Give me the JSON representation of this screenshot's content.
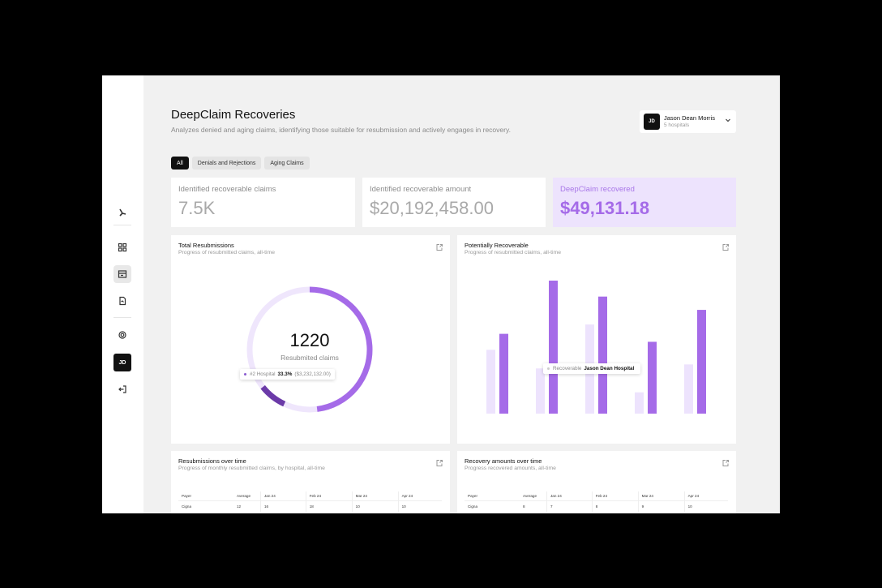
{
  "sidebar": {
    "items": [
      {
        "name": "logo"
      },
      {
        "name": "dashboard-icon"
      },
      {
        "name": "claims-icon"
      },
      {
        "name": "documents-icon"
      },
      {
        "name": "settings-icon"
      }
    ],
    "avatar_initials": "JD",
    "logout_icon": "logout-icon"
  },
  "header": {
    "title": "DeepClaim Recoveries",
    "subtitle": "Analyzes denied and aging claims, identifying those suitable for resubmission and actively engages in recovery."
  },
  "user": {
    "initials": "JD",
    "name": "Jason Dean Morris",
    "subtitle": "5 hospitals"
  },
  "filters": [
    "All",
    "Denials and Rejections",
    "Aging Claims"
  ],
  "stats": [
    {
      "label": "Identified recoverable claims",
      "value": "7.5K"
    },
    {
      "label": "Identified recoverable amount",
      "value": "$20,192,458.00"
    },
    {
      "label": "DeepClaim recovered",
      "value": "$49,131.18"
    }
  ],
  "cards": {
    "total_resubmissions": {
      "title": "Total Resubmissions",
      "subtitle": "Progress of resubmitted claims, all-time",
      "center_value": "1220",
      "center_label": "Resubmited claims",
      "tooltip": {
        "label": "#2 Hospital",
        "pct": "33.3%",
        "amount": "($3,232,132.00)"
      }
    },
    "potentially_recoverable": {
      "title": "Potentially Recoverable",
      "subtitle": "Progress of resubmitted claims, all-time",
      "tooltip": {
        "label": "Recoverable",
        "value": "Jason Dean Hospital"
      }
    },
    "resubmissions_over_time": {
      "title": "Resubmissions over time",
      "subtitle": "Progress of monthly resubmitted claims, by hospital, all-time",
      "headers": [
        "Payer",
        "Average",
        "Jan 24",
        "Feb 24",
        "Mar 24",
        "Apr 24"
      ],
      "rows": [
        [
          "Cigna",
          "12",
          "16",
          "18",
          "10",
          "10"
        ]
      ]
    },
    "recovery_amounts_over_time": {
      "title": "Recovery amounts over time",
      "subtitle": "Progress recovered amounts, all-time",
      "headers": [
        "Payer",
        "Average",
        "Jan 24",
        "Feb 24",
        "Mar 24",
        "Apr 24"
      ],
      "rows": [
        [
          "Cigna",
          "8",
          "7",
          "8",
          "9",
          "10"
        ]
      ]
    }
  },
  "chart_data": [
    {
      "type": "pie",
      "title": "Total Resubmissions",
      "segments": [
        {
          "name": "#2 Hospital",
          "value": 33.3
        },
        {
          "name": "other",
          "value": 66.7
        }
      ]
    },
    {
      "type": "bar",
      "title": "Potentially Recoverable",
      "series": [
        {
          "values": [
            0.48,
            0.34,
            0.67,
            0.16,
            0.37
          ]
        },
        {
          "values": [
            0.6,
            1.0,
            0.88,
            0.54,
            0.78
          ]
        }
      ],
      "ylim": [
        0,
        1
      ]
    }
  ],
  "colors": {
    "accent": "#a56be8",
    "accent_light": "#ede3fd",
    "dark_segment": "#6b3aa8"
  }
}
